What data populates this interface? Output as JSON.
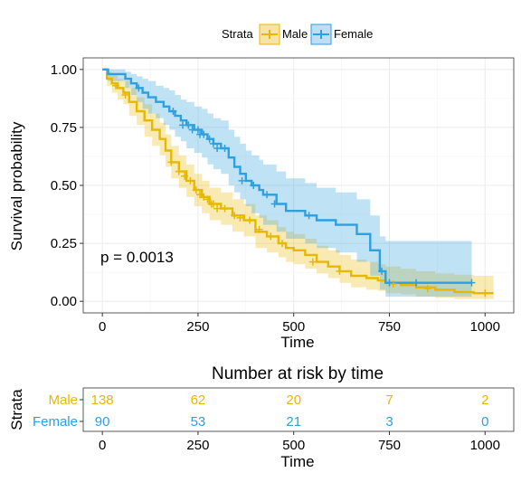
{
  "chart_data": {
    "type": "line",
    "subtype": "kaplan-meier",
    "legend": {
      "title": "Strata",
      "position": "top",
      "entries": [
        "Male",
        "Female"
      ]
    },
    "colors": {
      "Male": "#E7B800",
      "Female": "#2E9FDF"
    },
    "xlabel": "Time",
    "ylabel": "Survival probability",
    "xlim": [
      0,
      1025
    ],
    "ylim": [
      0,
      1
    ],
    "x_ticks": [
      0,
      250,
      500,
      750,
      1000
    ],
    "x_tick_labels": [
      "0",
      "250",
      "500",
      "750",
      "1000"
    ],
    "y_ticks": [
      0,
      0.25,
      0.5,
      0.75,
      1
    ],
    "y_tick_labels": [
      "0.00",
      "0.25",
      "0.50",
      "0.75",
      "1.00"
    ],
    "grid": true,
    "annotation": "p = 0.0013",
    "series": [
      {
        "name": "Male",
        "color": "#E7B800",
        "x": [
          0,
          12,
          25,
          40,
          55,
          70,
          90,
          110,
          130,
          150,
          165,
          180,
          200,
          220,
          240,
          260,
          280,
          310,
          340,
          370,
          400,
          430,
          460,
          480,
          500,
          530,
          560,
          590,
          620,
          650,
          690,
          720,
          740,
          780,
          820,
          870,
          920,
          970,
          1022
        ],
        "y": [
          1.0,
          0.96,
          0.94,
          0.92,
          0.9,
          0.86,
          0.82,
          0.78,
          0.74,
          0.7,
          0.65,
          0.6,
          0.56,
          0.52,
          0.48,
          0.45,
          0.42,
          0.4,
          0.37,
          0.35,
          0.3,
          0.28,
          0.25,
          0.23,
          0.22,
          0.2,
          0.17,
          0.15,
          0.13,
          0.11,
          0.1,
          0.09,
          0.08,
          0.07,
          0.06,
          0.05,
          0.04,
          0.035,
          0.035
        ],
        "ci_lower": [
          1.0,
          0.93,
          0.9,
          0.87,
          0.85,
          0.8,
          0.76,
          0.71,
          0.67,
          0.63,
          0.58,
          0.53,
          0.49,
          0.45,
          0.41,
          0.38,
          0.35,
          0.33,
          0.3,
          0.28,
          0.23,
          0.21,
          0.19,
          0.17,
          0.16,
          0.14,
          0.12,
          0.1,
          0.08,
          0.06,
          0.05,
          0.045,
          0.035,
          0.03,
          0.02,
          0.015,
          0.01,
          0.01,
          0.01
        ],
        "ci_upper": [
          1.0,
          0.99,
          0.98,
          0.96,
          0.95,
          0.92,
          0.88,
          0.85,
          0.81,
          0.77,
          0.72,
          0.67,
          0.63,
          0.59,
          0.55,
          0.52,
          0.49,
          0.47,
          0.44,
          0.42,
          0.37,
          0.35,
          0.32,
          0.3,
          0.29,
          0.27,
          0.24,
          0.22,
          0.2,
          0.18,
          0.17,
          0.16,
          0.15,
          0.14,
          0.13,
          0.12,
          0.115,
          0.11,
          0.11
        ],
        "censored_x": [
          35,
          60,
          180,
          200,
          215,
          230,
          245,
          255,
          265,
          275,
          285,
          290,
          300,
          320,
          345,
          360,
          385,
          410,
          440,
          470,
          550,
          620,
          760,
          850,
          1000
        ],
        "censored_y": [
          0.93,
          0.89,
          0.6,
          0.56,
          0.54,
          0.52,
          0.48,
          0.46,
          0.45,
          0.44,
          0.42,
          0.42,
          0.4,
          0.4,
          0.37,
          0.36,
          0.35,
          0.31,
          0.28,
          0.25,
          0.17,
          0.13,
          0.075,
          0.055,
          0.035
        ]
      },
      {
        "name": "Female",
        "color": "#2E9FDF",
        "x": [
          0,
          15,
          60,
          75,
          90,
          105,
          120,
          140,
          160,
          175,
          190,
          205,
          220,
          240,
          260,
          275,
          290,
          310,
          330,
          345,
          360,
          375,
          390,
          410,
          420,
          455,
          480,
          530,
          560,
          610,
          665,
          700,
          725,
          740,
          965
        ],
        "y": [
          1.0,
          0.98,
          0.96,
          0.94,
          0.92,
          0.9,
          0.88,
          0.86,
          0.84,
          0.82,
          0.8,
          0.78,
          0.76,
          0.74,
          0.72,
          0.7,
          0.68,
          0.66,
          0.62,
          0.58,
          0.55,
          0.52,
          0.5,
          0.48,
          0.46,
          0.42,
          0.39,
          0.37,
          0.35,
          0.33,
          0.29,
          0.22,
          0.13,
          0.08,
          0.08
        ],
        "ci_lower": [
          1.0,
          0.95,
          0.92,
          0.89,
          0.86,
          0.83,
          0.81,
          0.79,
          0.76,
          0.74,
          0.71,
          0.69,
          0.66,
          0.64,
          0.62,
          0.59,
          0.57,
          0.55,
          0.5,
          0.47,
          0.44,
          0.41,
          0.38,
          0.36,
          0.33,
          0.3,
          0.27,
          0.25,
          0.23,
          0.21,
          0.17,
          0.11,
          0.05,
          0.02,
          0.02
        ],
        "ci_upper": [
          1.0,
          1.0,
          0.99,
          0.98,
          0.97,
          0.96,
          0.95,
          0.93,
          0.92,
          0.91,
          0.89,
          0.87,
          0.86,
          0.84,
          0.83,
          0.81,
          0.79,
          0.78,
          0.74,
          0.71,
          0.68,
          0.65,
          0.63,
          0.61,
          0.59,
          0.56,
          0.53,
          0.51,
          0.49,
          0.47,
          0.44,
          0.37,
          0.28,
          0.26,
          0.26
        ],
        "censored_x": [
          95,
          185,
          210,
          225,
          235,
          250,
          255,
          265,
          280,
          290,
          300,
          320,
          365,
          395,
          430,
          450,
          540,
          730,
          750,
          820,
          965
        ],
        "censored_y": [
          0.92,
          0.82,
          0.76,
          0.76,
          0.74,
          0.74,
          0.72,
          0.72,
          0.7,
          0.68,
          0.66,
          0.66,
          0.52,
          0.5,
          0.46,
          0.42,
          0.37,
          0.13,
          0.08,
          0.08,
          0.08
        ]
      }
    ]
  },
  "risk_table": {
    "title": "Number at risk by time",
    "ylabel": "Strata",
    "xlabel": "Time",
    "times": [
      0,
      250,
      500,
      750,
      1000
    ],
    "time_labels": [
      "0",
      "250",
      "500",
      "750",
      "1000"
    ],
    "rows": [
      {
        "name": "Male",
        "color": "#E7B800",
        "values": [
          "138",
          "62",
          "20",
          "7",
          "2"
        ]
      },
      {
        "name": "Female",
        "color": "#2E9FDF",
        "values": [
          "90",
          "53",
          "21",
          "3",
          "0"
        ]
      }
    ]
  }
}
